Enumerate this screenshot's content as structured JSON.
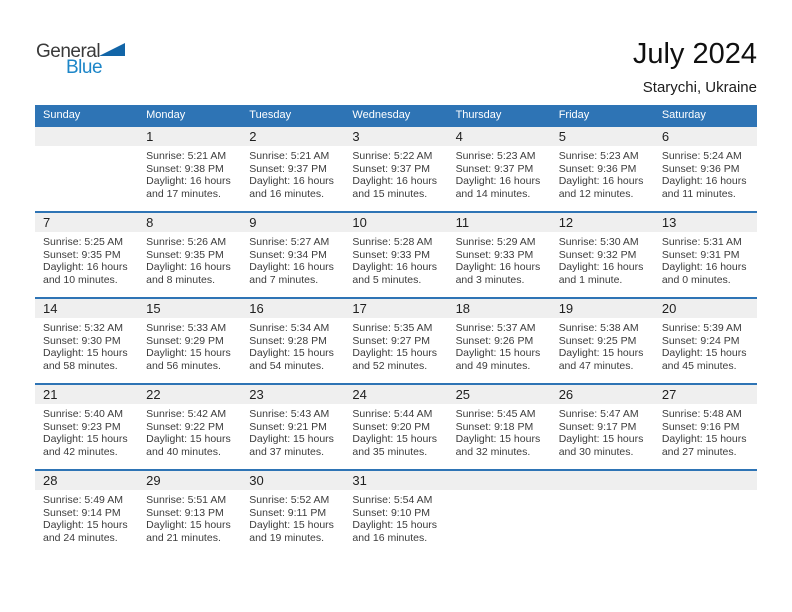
{
  "logo": {
    "word1": "General",
    "word2": "Blue",
    "triangle_color": "#1265a7",
    "word2_color": "#1d86c8"
  },
  "header": {
    "title": "July 2024",
    "location": "Starychi, Ukraine"
  },
  "colors": {
    "accent_blue": "#2e74b5",
    "day_band_gray": "#efefef"
  },
  "calendar": {
    "day_headers": [
      "Sunday",
      "Monday",
      "Tuesday",
      "Wednesday",
      "Thursday",
      "Friday",
      "Saturday"
    ],
    "weeks": [
      [
        null,
        {
          "day": "1",
          "sunrise": "Sunrise: 5:21 AM",
          "sunset": "Sunset: 9:38 PM",
          "daylight1": "Daylight: 16 hours",
          "daylight2": "and 17 minutes."
        },
        {
          "day": "2",
          "sunrise": "Sunrise: 5:21 AM",
          "sunset": "Sunset: 9:37 PM",
          "daylight1": "Daylight: 16 hours",
          "daylight2": "and 16 minutes."
        },
        {
          "day": "3",
          "sunrise": "Sunrise: 5:22 AM",
          "sunset": "Sunset: 9:37 PM",
          "daylight1": "Daylight: 16 hours",
          "daylight2": "and 15 minutes."
        },
        {
          "day": "4",
          "sunrise": "Sunrise: 5:23 AM",
          "sunset": "Sunset: 9:37 PM",
          "daylight1": "Daylight: 16 hours",
          "daylight2": "and 14 minutes."
        },
        {
          "day": "5",
          "sunrise": "Sunrise: 5:23 AM",
          "sunset": "Sunset: 9:36 PM",
          "daylight1": "Daylight: 16 hours",
          "daylight2": "and 12 minutes."
        },
        {
          "day": "6",
          "sunrise": "Sunrise: 5:24 AM",
          "sunset": "Sunset: 9:36 PM",
          "daylight1": "Daylight: 16 hours",
          "daylight2": "and 11 minutes."
        }
      ],
      [
        {
          "day": "7",
          "sunrise": "Sunrise: 5:25 AM",
          "sunset": "Sunset: 9:35 PM",
          "daylight1": "Daylight: 16 hours",
          "daylight2": "and 10 minutes."
        },
        {
          "day": "8",
          "sunrise": "Sunrise: 5:26 AM",
          "sunset": "Sunset: 9:35 PM",
          "daylight1": "Daylight: 16 hours",
          "daylight2": "and 8 minutes."
        },
        {
          "day": "9",
          "sunrise": "Sunrise: 5:27 AM",
          "sunset": "Sunset: 9:34 PM",
          "daylight1": "Daylight: 16 hours",
          "daylight2": "and 7 minutes."
        },
        {
          "day": "10",
          "sunrise": "Sunrise: 5:28 AM",
          "sunset": "Sunset: 9:33 PM",
          "daylight1": "Daylight: 16 hours",
          "daylight2": "and 5 minutes."
        },
        {
          "day": "11",
          "sunrise": "Sunrise: 5:29 AM",
          "sunset": "Sunset: 9:33 PM",
          "daylight1": "Daylight: 16 hours",
          "daylight2": "and 3 minutes."
        },
        {
          "day": "12",
          "sunrise": "Sunrise: 5:30 AM",
          "sunset": "Sunset: 9:32 PM",
          "daylight1": "Daylight: 16 hours",
          "daylight2": "and 1 minute."
        },
        {
          "day": "13",
          "sunrise": "Sunrise: 5:31 AM",
          "sunset": "Sunset: 9:31 PM",
          "daylight1": "Daylight: 16 hours",
          "daylight2": "and 0 minutes."
        }
      ],
      [
        {
          "day": "14",
          "sunrise": "Sunrise: 5:32 AM",
          "sunset": "Sunset: 9:30 PM",
          "daylight1": "Daylight: 15 hours",
          "daylight2": "and 58 minutes."
        },
        {
          "day": "15",
          "sunrise": "Sunrise: 5:33 AM",
          "sunset": "Sunset: 9:29 PM",
          "daylight1": "Daylight: 15 hours",
          "daylight2": "and 56 minutes."
        },
        {
          "day": "16",
          "sunrise": "Sunrise: 5:34 AM",
          "sunset": "Sunset: 9:28 PM",
          "daylight1": "Daylight: 15 hours",
          "daylight2": "and 54 minutes."
        },
        {
          "day": "17",
          "sunrise": "Sunrise: 5:35 AM",
          "sunset": "Sunset: 9:27 PM",
          "daylight1": "Daylight: 15 hours",
          "daylight2": "and 52 minutes."
        },
        {
          "day": "18",
          "sunrise": "Sunrise: 5:37 AM",
          "sunset": "Sunset: 9:26 PM",
          "daylight1": "Daylight: 15 hours",
          "daylight2": "and 49 minutes."
        },
        {
          "day": "19",
          "sunrise": "Sunrise: 5:38 AM",
          "sunset": "Sunset: 9:25 PM",
          "daylight1": "Daylight: 15 hours",
          "daylight2": "and 47 minutes."
        },
        {
          "day": "20",
          "sunrise": "Sunrise: 5:39 AM",
          "sunset": "Sunset: 9:24 PM",
          "daylight1": "Daylight: 15 hours",
          "daylight2": "and 45 minutes."
        }
      ],
      [
        {
          "day": "21",
          "sunrise": "Sunrise: 5:40 AM",
          "sunset": "Sunset: 9:23 PM",
          "daylight1": "Daylight: 15 hours",
          "daylight2": "and 42 minutes."
        },
        {
          "day": "22",
          "sunrise": "Sunrise: 5:42 AM",
          "sunset": "Sunset: 9:22 PM",
          "daylight1": "Daylight: 15 hours",
          "daylight2": "and 40 minutes."
        },
        {
          "day": "23",
          "sunrise": "Sunrise: 5:43 AM",
          "sunset": "Sunset: 9:21 PM",
          "daylight1": "Daylight: 15 hours",
          "daylight2": "and 37 minutes."
        },
        {
          "day": "24",
          "sunrise": "Sunrise: 5:44 AM",
          "sunset": "Sunset: 9:20 PM",
          "daylight1": "Daylight: 15 hours",
          "daylight2": "and 35 minutes."
        },
        {
          "day": "25",
          "sunrise": "Sunrise: 5:45 AM",
          "sunset": "Sunset: 9:18 PM",
          "daylight1": "Daylight: 15 hours",
          "daylight2": "and 32 minutes."
        },
        {
          "day": "26",
          "sunrise": "Sunrise: 5:47 AM",
          "sunset": "Sunset: 9:17 PM",
          "daylight1": "Daylight: 15 hours",
          "daylight2": "and 30 minutes."
        },
        {
          "day": "27",
          "sunrise": "Sunrise: 5:48 AM",
          "sunset": "Sunset: 9:16 PM",
          "daylight1": "Daylight: 15 hours",
          "daylight2": "and 27 minutes."
        }
      ],
      [
        {
          "day": "28",
          "sunrise": "Sunrise: 5:49 AM",
          "sunset": "Sunset: 9:14 PM",
          "daylight1": "Daylight: 15 hours",
          "daylight2": "and 24 minutes."
        },
        {
          "day": "29",
          "sunrise": "Sunrise: 5:51 AM",
          "sunset": "Sunset: 9:13 PM",
          "daylight1": "Daylight: 15 hours",
          "daylight2": "and 21 minutes."
        },
        {
          "day": "30",
          "sunrise": "Sunrise: 5:52 AM",
          "sunset": "Sunset: 9:11 PM",
          "daylight1": "Daylight: 15 hours",
          "daylight2": "and 19 minutes."
        },
        {
          "day": "31",
          "sunrise": "Sunrise: 5:54 AM",
          "sunset": "Sunset: 9:10 PM",
          "daylight1": "Daylight: 15 hours",
          "daylight2": "and 16 minutes."
        },
        null,
        null,
        null
      ]
    ]
  }
}
